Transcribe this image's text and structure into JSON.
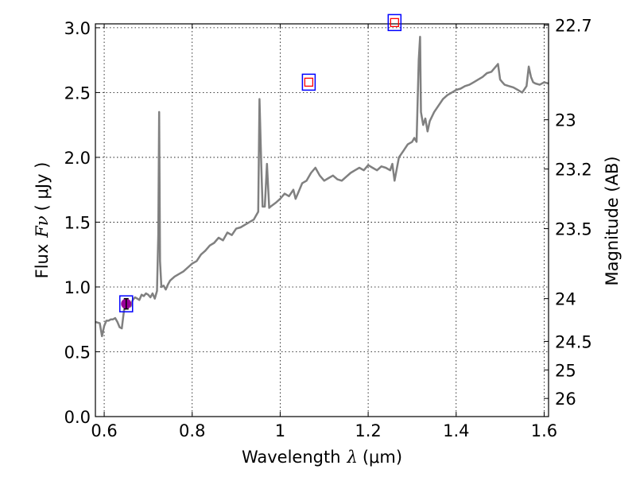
{
  "chart_data": {
    "type": "line",
    "xlabel_prefix": "Wavelength",
    "xlabel_symbol": "λ",
    "xlabel_unit": "(μm)",
    "ylabel_prefix": "Flux",
    "ylabel_symbol": "Fν",
    "ylabel_unit": "( μJy )",
    "y2label": "Magnitude (AB)",
    "xlim": [
      0.58,
      1.61
    ],
    "ylim": [
      0.0,
      3.03
    ],
    "grid": true,
    "x_ticks": [
      {
        "value": 0.6,
        "label": "0.6"
      },
      {
        "value": 0.8,
        "label": "0.8"
      },
      {
        "value": 1.0,
        "label": "1"
      },
      {
        "value": 1.2,
        "label": "1.2"
      },
      {
        "value": 1.4,
        "label": "1.4"
      },
      {
        "value": 1.6,
        "label": "1.6"
      }
    ],
    "y_ticks": [
      {
        "value": 0.0,
        "label": "0.0"
      },
      {
        "value": 0.5,
        "label": "0.5"
      },
      {
        "value": 1.0,
        "label": "1.0"
      },
      {
        "value": 1.5,
        "label": "1.5"
      },
      {
        "value": 2.0,
        "label": "2.0"
      },
      {
        "value": 2.5,
        "label": "2.5"
      },
      {
        "value": 3.0,
        "label": "3.0"
      }
    ],
    "y2_ticks": [
      {
        "flux": 3.02,
        "label": "22.7"
      },
      {
        "flux": 2.29,
        "label": "23"
      },
      {
        "flux": 1.91,
        "label": "23.2"
      },
      {
        "flux": 1.45,
        "label": "23.5"
      },
      {
        "flux": 0.91,
        "label": "24"
      },
      {
        "flux": 0.58,
        "label": "24.5"
      },
      {
        "flux": 0.36,
        "label": "25"
      },
      {
        "flux": 0.14,
        "label": "26"
      }
    ],
    "spectrum": {
      "color": "#808080",
      "x": [
        0.58,
        0.59,
        0.595,
        0.6,
        0.605,
        0.61,
        0.615,
        0.62,
        0.625,
        0.63,
        0.635,
        0.64,
        0.645,
        0.65,
        0.655,
        0.66,
        0.665,
        0.67,
        0.675,
        0.68,
        0.685,
        0.69,
        0.695,
        0.7,
        0.705,
        0.71,
        0.715,
        0.72,
        0.723,
        0.725,
        0.727,
        0.73,
        0.735,
        0.74,
        0.745,
        0.75,
        0.76,
        0.77,
        0.78,
        0.79,
        0.8,
        0.81,
        0.82,
        0.83,
        0.84,
        0.85,
        0.86,
        0.87,
        0.88,
        0.89,
        0.9,
        0.91,
        0.92,
        0.93,
        0.94,
        0.945,
        0.95,
        0.953,
        0.957,
        0.96,
        0.965,
        0.97,
        0.975,
        0.978,
        0.982,
        0.99,
        1.0,
        1.01,
        1.02,
        1.03,
        1.035,
        1.04,
        1.05,
        1.06,
        1.07,
        1.08,
        1.09,
        1.1,
        1.11,
        1.12,
        1.13,
        1.14,
        1.15,
        1.16,
        1.17,
        1.18,
        1.19,
        1.2,
        1.21,
        1.22,
        1.23,
        1.24,
        1.25,
        1.255,
        1.26,
        1.27,
        1.28,
        1.29,
        1.3,
        1.305,
        1.31,
        1.315,
        1.318,
        1.32,
        1.325,
        1.33,
        1.335,
        1.34,
        1.35,
        1.36,
        1.37,
        1.38,
        1.39,
        1.4,
        1.41,
        1.42,
        1.43,
        1.44,
        1.45,
        1.46,
        1.47,
        1.48,
        1.49,
        1.495,
        1.5,
        1.505,
        1.51,
        1.52,
        1.53,
        1.54,
        1.55,
        1.56,
        1.565,
        1.57,
        1.575,
        1.58,
        1.59,
        1.6,
        1.61
      ],
      "y": [
        0.73,
        0.72,
        0.62,
        0.7,
        0.74,
        0.74,
        0.75,
        0.75,
        0.76,
        0.73,
        0.69,
        0.68,
        0.82,
        0.86,
        0.88,
        0.85,
        0.9,
        0.92,
        0.91,
        0.9,
        0.94,
        0.93,
        0.95,
        0.94,
        0.92,
        0.95,
        0.91,
        0.97,
        1.4,
        2.35,
        1.2,
        1.0,
        1.01,
        0.98,
        1.02,
        1.05,
        1.08,
        1.1,
        1.12,
        1.15,
        1.18,
        1.2,
        1.25,
        1.28,
        1.32,
        1.34,
        1.38,
        1.36,
        1.42,
        1.4,
        1.45,
        1.46,
        1.48,
        1.5,
        1.52,
        1.55,
        1.58,
        2.45,
        1.95,
        1.62,
        1.62,
        1.95,
        1.61,
        1.62,
        1.63,
        1.65,
        1.68,
        1.72,
        1.7,
        1.75,
        1.68,
        1.72,
        1.8,
        1.82,
        1.88,
        1.92,
        1.86,
        1.82,
        1.84,
        1.86,
        1.83,
        1.82,
        1.85,
        1.88,
        1.9,
        1.92,
        1.9,
        1.94,
        1.92,
        1.9,
        1.93,
        1.92,
        1.9,
        1.95,
        1.82,
        2.0,
        2.05,
        2.1,
        2.12,
        2.15,
        2.12,
        2.75,
        2.93,
        2.35,
        2.25,
        2.3,
        2.2,
        2.28,
        2.35,
        2.4,
        2.45,
        2.48,
        2.5,
        2.52,
        2.53,
        2.55,
        2.56,
        2.58,
        2.6,
        2.62,
        2.65,
        2.66,
        2.7,
        2.72,
        2.6,
        2.58,
        2.56,
        2.55,
        2.54,
        2.52,
        2.5,
        2.55,
        2.7,
        2.62,
        2.58,
        2.57,
        2.56,
        2.58,
        2.57
      ]
    },
    "photometry": [
      {
        "x": 0.65,
        "y": 0.87,
        "yerr": 0.04,
        "marker": "circle",
        "color": "#990099",
        "box": "#0000ff"
      },
      {
        "x": 1.065,
        "y": 2.58,
        "marker": "open-square",
        "color": "#ff0000",
        "box": "#0000ff"
      },
      {
        "x": 1.26,
        "y": 3.04,
        "marker": "open-square",
        "color": "#ff0000",
        "box": "#0000ff"
      }
    ]
  }
}
